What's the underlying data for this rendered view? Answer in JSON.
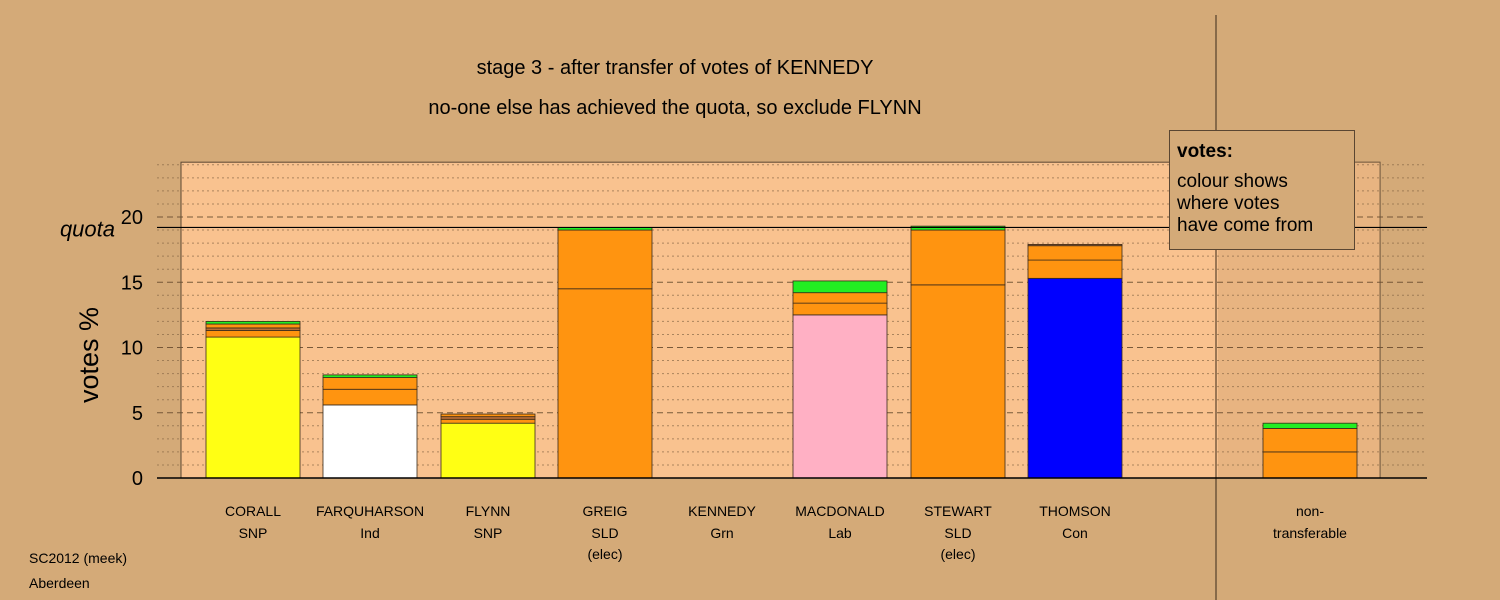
{
  "titles": {
    "line1": "stage 3 - after transfer of votes of KENNEDY",
    "line2": "no-one else has achieved the quota, so exclude FLYNN"
  },
  "legend": {
    "title": "votes:",
    "lines": [
      "colour shows",
      "where votes",
      "have come from"
    ]
  },
  "footer": {
    "line1": "SC2012 (meek)",
    "line2": "Aberdeen"
  },
  "colors": {
    "background": "#d4aa78",
    "plot_bg": "#f9c28f",
    "orange": "#ff9410",
    "green": "#22ee22",
    "yellow": "#ffff14",
    "white": "#ffffff",
    "pink": "#ffb0c4",
    "blue": "#0000ff",
    "brown": "#b96e36",
    "outline": "#5a4632"
  },
  "chart_data": {
    "type": "bar",
    "stacked": true,
    "ylabel": "votes %",
    "quota": 19.2,
    "quota_label": "quota",
    "yticks": [
      0,
      5,
      10,
      15,
      20
    ],
    "ylim": [
      0,
      24.2
    ],
    "grid": "dashed major lines every 5, dotted minor lines every 1",
    "categories": [
      {
        "name": "CORALL",
        "party": "SNP",
        "note": "",
        "segments": [
          {
            "value": 10.8,
            "color": "yellow"
          },
          {
            "value": 0.5,
            "color": "orange"
          },
          {
            "value": 0.2,
            "color": "brown"
          },
          {
            "value": 0.3,
            "color": "orange"
          },
          {
            "value": 0.2,
            "color": "green"
          }
        ]
      },
      {
        "name": "FARQUHARSON",
        "party": "Ind",
        "note": "",
        "segments": [
          {
            "value": 5.6,
            "color": "white"
          },
          {
            "value": 1.2,
            "color": "orange"
          },
          {
            "value": 0.9,
            "color": "orange"
          },
          {
            "value": 0.2,
            "color": "green"
          }
        ]
      },
      {
        "name": "FLYNN",
        "party": "SNP",
        "note": "",
        "segments": [
          {
            "value": 4.2,
            "color": "yellow"
          },
          {
            "value": 0.3,
            "color": "orange"
          },
          {
            "value": 0.2,
            "color": "brown"
          },
          {
            "value": 0.2,
            "color": "orange"
          }
        ]
      },
      {
        "name": "GREIG",
        "party": "SLD",
        "note": "(elec)",
        "segments": [
          {
            "value": 14.5,
            "color": "orange"
          },
          {
            "value": 4.5,
            "color": "orange"
          },
          {
            "value": 0.2,
            "color": "green"
          }
        ]
      },
      {
        "name": "KENNEDY",
        "party": "Grn",
        "note": "",
        "segments": []
      },
      {
        "name": "MACDONALD",
        "party": "Lab",
        "note": "",
        "segments": [
          {
            "value": 12.5,
            "color": "pink"
          },
          {
            "value": 0.9,
            "color": "orange"
          },
          {
            "value": 0.8,
            "color": "orange"
          },
          {
            "value": 0.9,
            "color": "green"
          }
        ]
      },
      {
        "name": "STEWART",
        "party": "SLD",
        "note": "(elec)",
        "segments": [
          {
            "value": 14.8,
            "color": "orange"
          },
          {
            "value": 4.2,
            "color": "orange"
          },
          {
            "value": 0.3,
            "color": "green"
          }
        ]
      },
      {
        "name": "THOMSON",
        "party": "Con",
        "note": "",
        "segments": [
          {
            "value": 15.3,
            "color": "blue"
          },
          {
            "value": 1.4,
            "color": "orange"
          },
          {
            "value": 1.1,
            "color": "orange"
          },
          {
            "value": 0.1,
            "color": "brown"
          }
        ]
      }
    ],
    "non_transferable": {
      "label1": "non-",
      "label2": "transferable",
      "segments": [
        {
          "value": 2.0,
          "color": "orange"
        },
        {
          "value": 1.8,
          "color": "orange"
        },
        {
          "value": 0.4,
          "color": "green"
        }
      ]
    }
  }
}
